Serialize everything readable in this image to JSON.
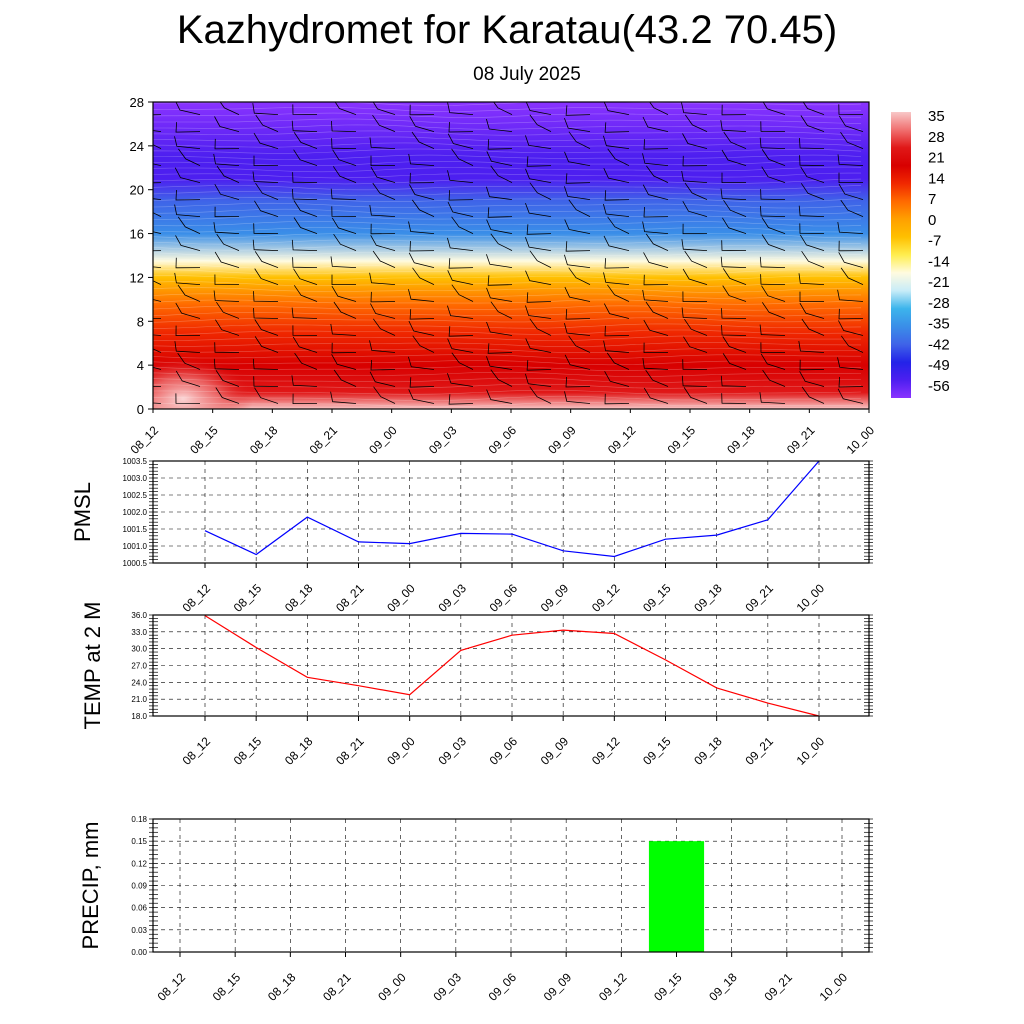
{
  "title": "Kazhydromet for Karatau(43.2 70.45)",
  "subtitle": "08 July 2025",
  "chart_data": [
    {
      "type": "heatmap",
      "name": "temperature-height-section",
      "x": [
        "08_12",
        "08_15",
        "08_18",
        "08_21",
        "09_00",
        "09_03",
        "09_06",
        "09_09",
        "09_12",
        "09_15",
        "09_18",
        "09_21",
        "10_00"
      ],
      "ylim": [
        0,
        28
      ],
      "yticks": [
        "0",
        "4",
        "8",
        "12",
        "16",
        "20",
        "24",
        "28"
      ],
      "colorbar_labels": [
        "35",
        "28",
        "21",
        "14",
        "7",
        "0",
        "-7",
        "-14",
        "-21",
        "-28",
        "-35",
        "-42",
        "-49",
        "-56"
      ],
      "color_scale": [
        {
          "value": 38,
          "color": "#f8c8c8"
        },
        {
          "value": 34,
          "color": "#f07070"
        },
        {
          "value": 30,
          "color": "#e01818"
        },
        {
          "value": 22,
          "color": "#d80000"
        },
        {
          "value": 15,
          "color": "#f02800"
        },
        {
          "value": 9,
          "color": "#ff6a00"
        },
        {
          "value": 4,
          "color": "#ffa000"
        },
        {
          "value": 0,
          "color": "#ffc000"
        },
        {
          "value": -6,
          "color": "#ffee50"
        },
        {
          "value": -11,
          "color": "#fffbe0"
        },
        {
          "value": -15,
          "color": "#c8ecf8"
        },
        {
          "value": -22,
          "color": "#3cb4ec"
        },
        {
          "value": -30,
          "color": "#3a8ee8"
        },
        {
          "value": -38,
          "color": "#3f63e8"
        },
        {
          "value": -46,
          "color": "#2323e8"
        },
        {
          "value": -53,
          "color": "#4d1ff0"
        },
        {
          "value": -60,
          "color": "#8a33ff"
        }
      ],
      "profile": [
        {
          "z": 0,
          "t": 37
        },
        {
          "z": 1.5,
          "t": 30
        },
        {
          "z": 4,
          "t": 22
        },
        {
          "z": 7,
          "t": 14
        },
        {
          "z": 9.5,
          "t": 5
        },
        {
          "z": 12,
          "t": -5
        },
        {
          "z": 13.5,
          "t": -14
        },
        {
          "z": 16,
          "t": -30
        },
        {
          "z": 19,
          "t": -44
        },
        {
          "z": 21,
          "t": -55
        },
        {
          "z": 23,
          "t": -56
        },
        {
          "z": 28,
          "t": -60
        }
      ]
    },
    {
      "type": "line",
      "ylabel": "PMSL",
      "x": [
        "08_12",
        "08_15",
        "08_18",
        "08_21",
        "09_00",
        "09_03",
        "09_06",
        "09_09",
        "09_12",
        "09_15",
        "09_18",
        "09_21",
        "10_00"
      ],
      "values": [
        1001.45,
        1000.75,
        1001.85,
        1001.12,
        1001.07,
        1001.37,
        1001.35,
        1000.86,
        1000.69,
        1001.2,
        1001.32,
        1001.77,
        1003.5
      ],
      "ylim": [
        1000.5,
        1003.5
      ],
      "yticks": [
        "1000.5",
        "1001.0",
        "1001.5",
        "1002.0",
        "1002.5",
        "1003.0",
        "1003.5"
      ],
      "color": "#0000ff",
      "grid": true
    },
    {
      "type": "line",
      "ylabel": "TEMP at 2 M",
      "x": [
        "08_12",
        "08_15",
        "08_18",
        "08_21",
        "09_00",
        "09_03",
        "09_06",
        "09_09",
        "09_12",
        "09_15",
        "09_18",
        "09_21",
        "10_00"
      ],
      "values": [
        35.9,
        30.2,
        24.9,
        23.4,
        21.8,
        29.7,
        32.4,
        33.3,
        32.7,
        28.0,
        23.0,
        20.3,
        18.0
      ],
      "ylim": [
        18,
        36
      ],
      "yticks": [
        "18.0",
        "21.0",
        "24.0",
        "27.0",
        "30.0",
        "33.0",
        "36.0"
      ],
      "color": "#ff0000",
      "grid": true
    },
    {
      "type": "bar",
      "ylabel": "PRECIP, mm",
      "categories": [
        "08_12",
        "08_15",
        "08_18",
        "08_21",
        "09_00",
        "09_03",
        "09_06",
        "09_09",
        "09_12",
        "09_15",
        "09_18",
        "09_21",
        "10_00"
      ],
      "values": [
        0,
        0,
        0,
        0,
        0,
        0,
        0,
        0,
        0,
        0.15,
        0,
        0,
        0
      ],
      "ylim": [
        0,
        0.18
      ],
      "yticks": [
        "0.00",
        "0.03",
        "0.06",
        "0.09",
        "0.12",
        "0.15",
        "0.18"
      ],
      "color": "#00ff00",
      "grid": true
    }
  ]
}
